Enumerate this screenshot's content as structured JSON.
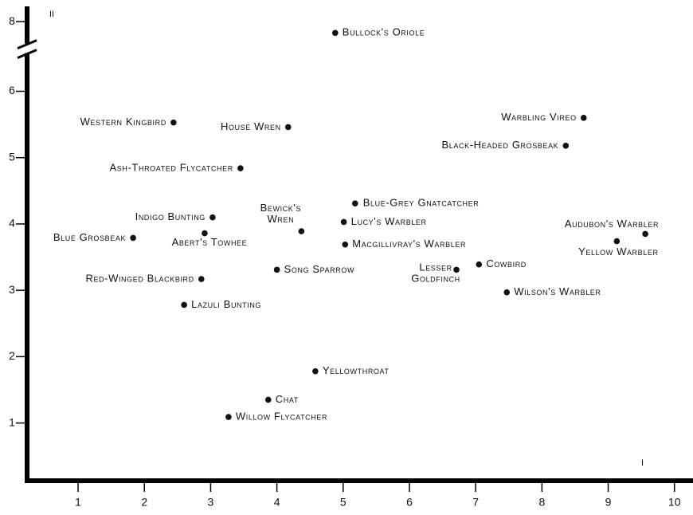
{
  "chart_data": {
    "type": "scatter",
    "x_label": "I",
    "y_label": "II",
    "xlim": [
      0.23,
      10.28
    ],
    "ylim": [
      0.13,
      8.23
    ],
    "xticks": [
      1,
      2,
      3,
      4,
      5,
      6,
      7,
      8,
      9,
      10
    ],
    "yticks": [
      1,
      2,
      3,
      4,
      5,
      6,
      8
    ],
    "y_break": [
      6.6,
      7.55
    ],
    "color": "#111111",
    "labels": [
      "Bullock's Oriole",
      "Western Kingbird",
      "House Wren",
      "Warbling Vireo",
      "Black-Headed Grosbeak",
      "Ash-Throated Flycatcher",
      "Blue-Grey Gnatcatcher",
      "Indigo Bunting",
      "Bewick's Wren",
      "Lucy's Warbler",
      "Audubon's Warbler",
      "Yellow Warbler",
      "Blue Grosbeak",
      "Abert's Towhee",
      "Macgillivray's Warbler",
      "Song Sparrow",
      "Lesser Goldfinch",
      "Cowbird",
      "Red-Winged Blackbird",
      "Wilson's Warbler",
      "Lazuli Bunting",
      "Yellowthroat",
      "Chat",
      "Willow Flycatcher"
    ],
    "x": [
      4.88,
      2.44,
      4.17,
      8.63,
      8.36,
      3.45,
      5.18,
      3.03,
      4.37,
      5.01,
      9.56,
      9.13,
      1.83,
      2.91,
      5.03,
      4.0,
      6.71,
      7.05,
      2.86,
      7.47,
      2.6,
      4.58,
      3.87,
      3.27
    ],
    "y": [
      7.83,
      5.53,
      5.46,
      5.6,
      5.18,
      4.84,
      4.31,
      4.1,
      3.89,
      4.03,
      3.85,
      3.74,
      3.79,
      3.86,
      3.69,
      3.31,
      3.31,
      3.39,
      3.17,
      2.97,
      2.78,
      1.78,
      1.35,
      1.09
    ]
  }
}
